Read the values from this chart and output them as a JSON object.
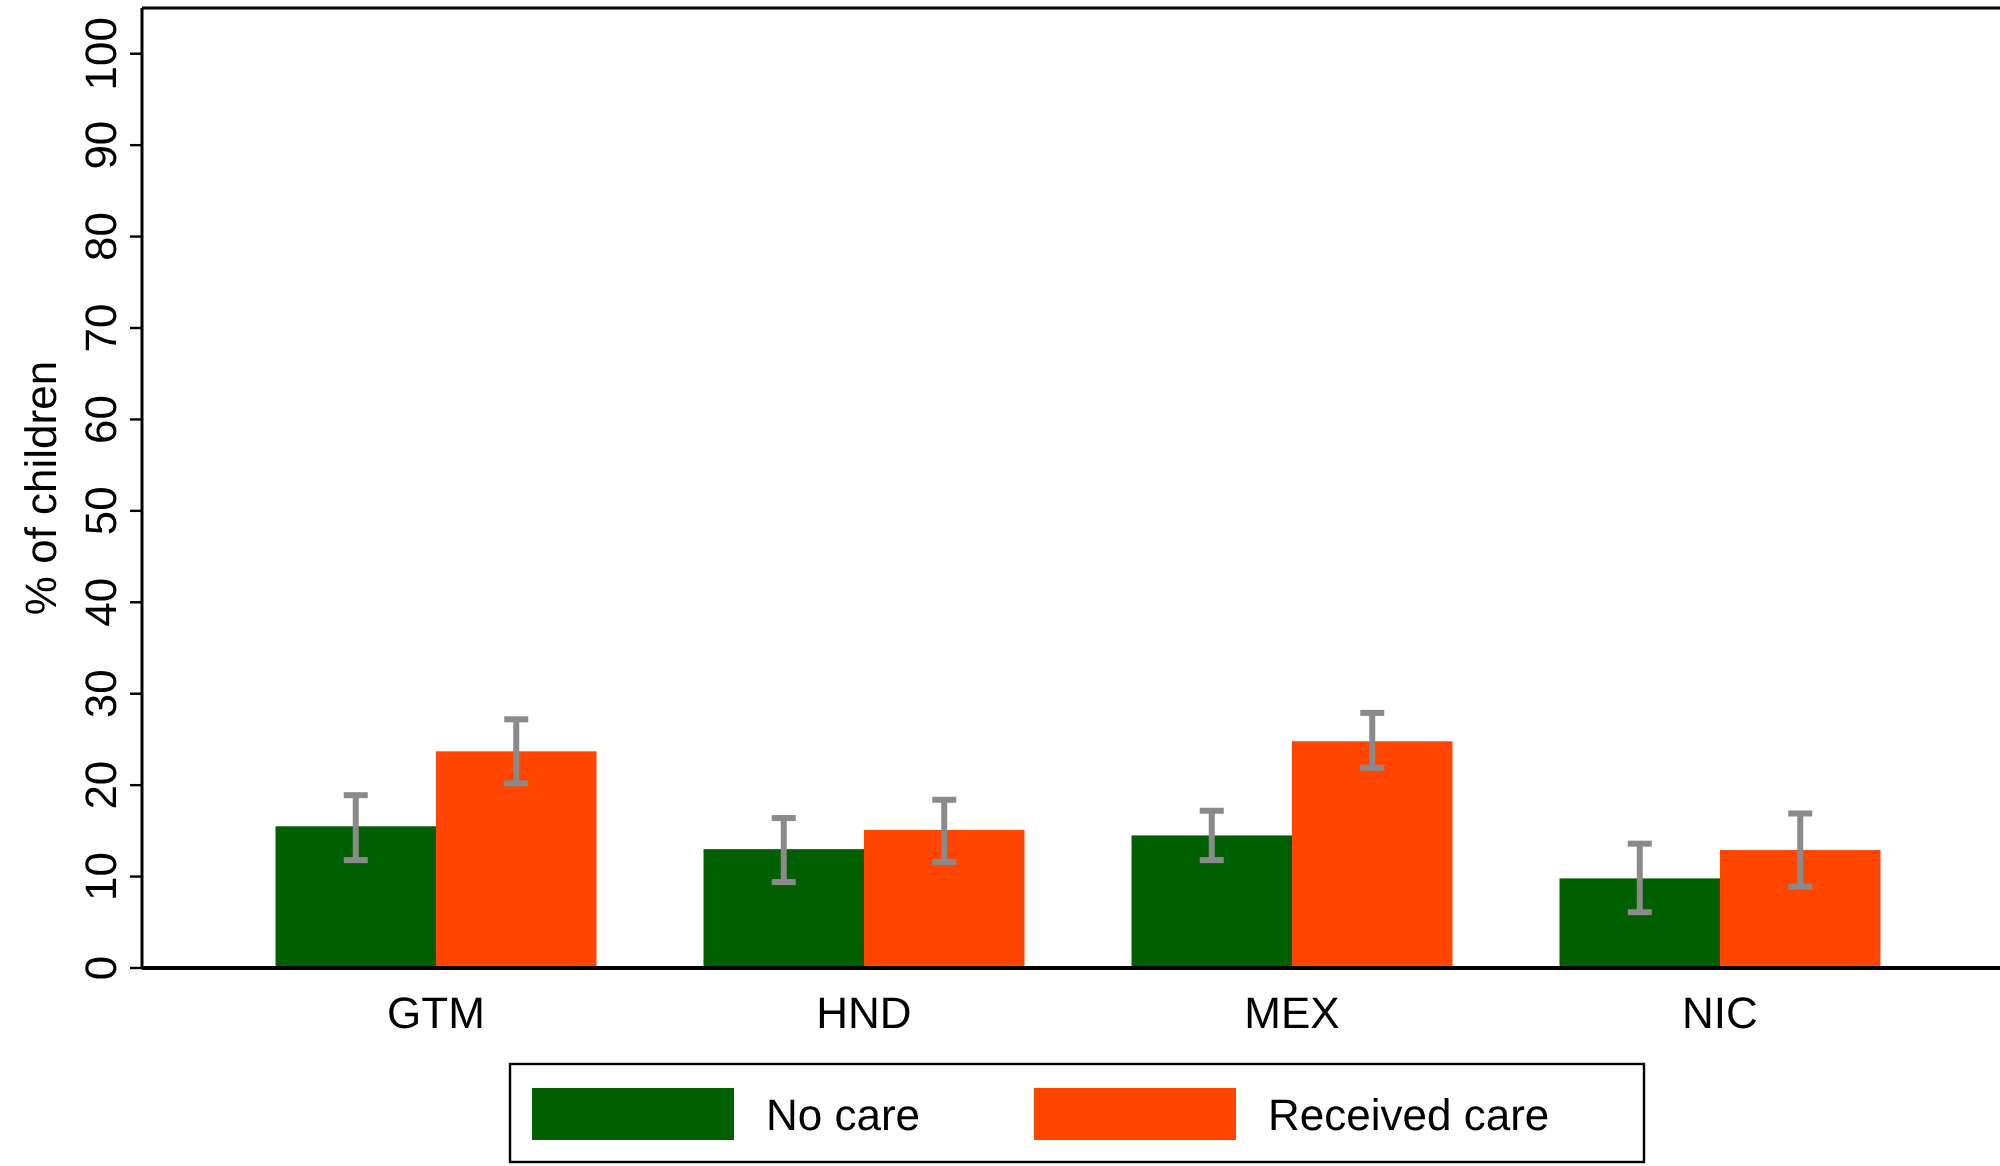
{
  "chart_data": {
    "type": "bar",
    "ylabel": "% of children",
    "categories": [
      "GTM",
      "HND",
      "MEX",
      "NIC"
    ],
    "series": [
      {
        "name": "No care",
        "color": "#005f00",
        "values": [
          15.5,
          13.0,
          14.5,
          9.8
        ],
        "errors": [
          [
            11.8,
            18.9
          ],
          [
            9.4,
            16.4
          ],
          [
            11.8,
            17.2
          ],
          [
            6.1,
            13.6
          ]
        ]
      },
      {
        "name": "Received care",
        "color": "#ff4500",
        "values": [
          23.7,
          15.1,
          24.8,
          12.9
        ],
        "errors": [
          [
            20.2,
            27.2
          ],
          [
            11.6,
            18.4
          ],
          [
            21.9,
            27.9
          ],
          [
            8.9,
            16.9
          ]
        ]
      }
    ],
    "ylim": [
      0,
      105
    ],
    "yticks": [
      0,
      10,
      20,
      30,
      40,
      50,
      60,
      70,
      80,
      90,
      100
    ],
    "grid": false,
    "legend": "bottom"
  }
}
